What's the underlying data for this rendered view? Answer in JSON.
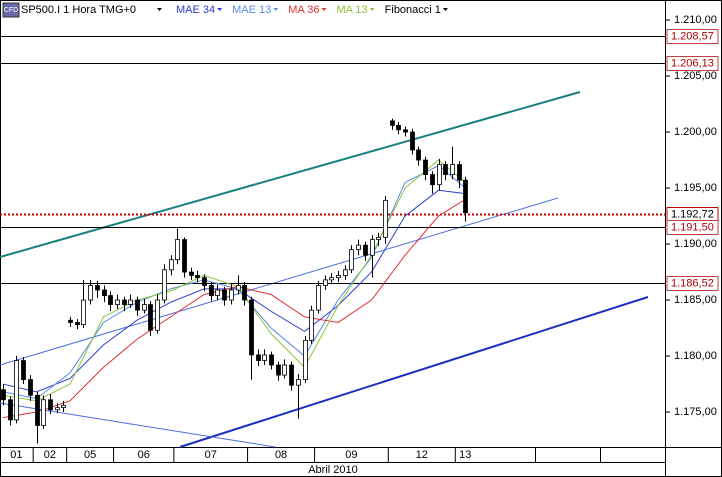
{
  "chart_data": {
    "type": "candlestick",
    "icon_label": "CFD",
    "title": "SP500.I 1 Hora TMG+0",
    "indicators": [
      "Fibonacci 1"
    ],
    "x_label": "Abril 2010",
    "ylim": [
      1.17188,
      1.21179
    ],
    "yticks": [
      {
        "value": 1.21,
        "label": "1.210,00"
      },
      {
        "value": 1.205,
        "label": "1.205,00"
      },
      {
        "value": 1.2,
        "label": "1.200,00"
      },
      {
        "value": 1.195,
        "label": "1.195,00"
      },
      {
        "value": 1.19,
        "label": "1.190,00"
      },
      {
        "value": 1.185,
        "label": "1.185,00"
      },
      {
        "value": 1.18,
        "label": "1.180,00"
      },
      {
        "value": 1.175,
        "label": "1.175,00"
      }
    ],
    "xlim": [
      -0.45,
      98.8
    ],
    "up_color": "#ffffff",
    "down_color": "#000000",
    "days": [
      {
        "label": "01",
        "start": 0
      },
      {
        "label": "02",
        "start": 5
      },
      {
        "label": "05",
        "start": 10
      },
      {
        "label": "06",
        "start": 17
      },
      {
        "label": "07",
        "start": 26
      },
      {
        "label": "08",
        "start": 37
      },
      {
        "label": "09",
        "start": 47
      },
      {
        "label": "12",
        "start": 58
      },
      {
        "label": "13",
        "start": 68
      }
    ],
    "levels": [
      {
        "value": 1.20857,
        "label": "1.208,57",
        "color": "#000000",
        "text_color": "#b00000",
        "style": "solid"
      },
      {
        "value": 1.20613,
        "label": "1.206,13",
        "color": "#000000",
        "text_color": "#b00000",
        "style": "solid"
      },
      {
        "value": 1.19272,
        "label": "1.192,72",
        "color": "#c00000",
        "text_color": "#000000",
        "style": "dotted"
      },
      {
        "value": 1.1915,
        "label": "1.191,50",
        "color": "#000000",
        "text_color": "#b00000",
        "style": "solid"
      },
      {
        "value": 1.18652,
        "label": "1.186,52",
        "color": "#000000",
        "text_color": "#b00000",
        "style": "solid"
      }
    ],
    "series": [
      {
        "name": "MAE 34",
        "color": "#2a3fd0",
        "x": [
          0,
          5,
          10,
          15,
          20,
          25,
          30,
          35,
          40,
          45,
          50,
          55,
          60,
          65,
          69
        ],
        "values": [
          1.1775,
          1.1768,
          1.178,
          1.181,
          1.1832,
          1.1848,
          1.186,
          1.186,
          1.184,
          1.1822,
          1.1845,
          1.1875,
          1.1925,
          1.1948,
          1.1945
        ]
      },
      {
        "name": "MAE 13",
        "color": "#5a8ae8",
        "x": [
          0,
          5,
          10,
          15,
          20,
          25,
          30,
          35,
          40,
          45,
          50,
          55,
          60,
          65,
          69
        ],
        "values": [
          1.1768,
          1.1762,
          1.1785,
          1.183,
          1.1848,
          1.186,
          1.1868,
          1.186,
          1.1825,
          1.18,
          1.185,
          1.1888,
          1.1955,
          1.197,
          1.195
        ]
      },
      {
        "name": "MA 36",
        "color": "#e03030",
        "x": [
          0,
          5,
          10,
          15,
          20,
          25,
          30,
          35,
          40,
          45,
          50,
          55,
          60,
          65,
          69
        ],
        "values": [
          1.1745,
          1.175,
          1.176,
          1.179,
          1.1815,
          1.1835,
          1.1855,
          1.1862,
          1.1855,
          1.1835,
          1.183,
          1.185,
          1.189,
          1.1925,
          1.194
        ]
      },
      {
        "name": "MA 13",
        "color": "#8cc43c",
        "x": [
          0,
          5,
          10,
          15,
          20,
          25,
          30,
          35,
          40,
          45,
          50,
          55,
          60,
          65,
          69
        ],
        "values": [
          1.1765,
          1.176,
          1.1775,
          1.1835,
          1.185,
          1.1858,
          1.1872,
          1.1862,
          1.182,
          1.179,
          1.1845,
          1.189,
          1.195,
          1.1975,
          1.1955
        ]
      }
    ],
    "ohlc": [
      [
        1.177,
        1.1775,
        1.1756,
        1.1761
      ],
      [
        1.1761,
        1.1764,
        1.1738,
        1.1743
      ],
      [
        1.1743,
        1.18,
        1.174,
        1.1796
      ],
      [
        1.1796,
        1.1799,
        1.1775,
        1.1779
      ],
      [
        1.1779,
        1.1783,
        1.176,
        1.1765
      ],
      [
        1.1765,
        1.1768,
        1.1722,
        1.1738
      ],
      [
        1.1738,
        1.1765,
        1.1735,
        1.1761
      ],
      [
        1.1761,
        1.1766,
        1.1748,
        1.1752
      ],
      [
        1.1752,
        1.1758,
        1.1749,
        1.1754
      ],
      [
        1.1754,
        1.176,
        1.175,
        1.1756
      ],
      [
        1.1832,
        1.1835,
        1.1826,
        1.183
      ],
      [
        1.183,
        1.1833,
        1.1824,
        1.1828
      ],
      [
        1.1828,
        1.1868,
        1.1825,
        1.185
      ],
      [
        1.185,
        1.1868,
        1.1846,
        1.1863
      ],
      [
        1.1863,
        1.1867,
        1.1852,
        1.1859
      ],
      [
        1.1859,
        1.1863,
        1.1848,
        1.1854
      ],
      [
        1.1854,
        1.1858,
        1.184,
        1.1846
      ],
      [
        1.1846,
        1.1855,
        1.1842,
        1.185
      ],
      [
        1.185,
        1.1853,
        1.184,
        1.1846
      ],
      [
        1.1846,
        1.1855,
        1.1843,
        1.185
      ],
      [
        1.185,
        1.1853,
        1.1836,
        1.1841
      ],
      [
        1.1841,
        1.1851,
        1.1838,
        1.1846
      ],
      [
        1.1846,
        1.1849,
        1.1818,
        1.1823
      ],
      [
        1.1823,
        1.1855,
        1.182,
        1.185
      ],
      [
        1.185,
        1.1882,
        1.1847,
        1.1877
      ],
      [
        1.1877,
        1.189,
        1.1872,
        1.1886
      ],
      [
        1.1886,
        1.1914,
        1.1882,
        1.1904
      ],
      [
        1.1904,
        1.1906,
        1.187,
        1.1875
      ],
      [
        1.1875,
        1.1879,
        1.1868,
        1.1872
      ],
      [
        1.1872,
        1.1876,
        1.1866,
        1.187
      ],
      [
        1.187,
        1.1873,
        1.1858,
        1.1863
      ],
      [
        1.1863,
        1.1866,
        1.1849,
        1.1854
      ],
      [
        1.1854,
        1.1864,
        1.185,
        1.1859
      ],
      [
        1.1859,
        1.1862,
        1.1845,
        1.185
      ],
      [
        1.185,
        1.1864,
        1.1846,
        1.1859
      ],
      [
        1.1859,
        1.1872,
        1.1855,
        1.1863
      ],
      [
        1.1863,
        1.1866,
        1.1845,
        1.185
      ],
      [
        1.185,
        1.1853,
        1.1779,
        1.1801
      ],
      [
        1.1801,
        1.1806,
        1.1791,
        1.1796
      ],
      [
        1.1796,
        1.1806,
        1.1792,
        1.1801
      ],
      [
        1.1801,
        1.1804,
        1.1788,
        1.1792
      ],
      [
        1.1792,
        1.1795,
        1.1778,
        1.1783
      ],
      [
        1.1783,
        1.1797,
        1.178,
        1.1792
      ],
      [
        1.1792,
        1.1795,
        1.1769,
        1.1774
      ],
      [
        1.1774,
        1.1784,
        1.1744,
        1.1779
      ],
      [
        1.1779,
        1.1818,
        1.1776,
        1.1814
      ],
      [
        1.1814,
        1.1845,
        1.1811,
        1.1841
      ],
      [
        1.1841,
        1.1867,
        1.1838,
        1.1863
      ],
      [
        1.1863,
        1.1872,
        1.1859,
        1.1868
      ],
      [
        1.1868,
        1.1874,
        1.1864,
        1.187
      ],
      [
        1.187,
        1.1876,
        1.1866,
        1.1872
      ],
      [
        1.1872,
        1.1881,
        1.1868,
        1.1877
      ],
      [
        1.1877,
        1.1899,
        1.1874,
        1.1895
      ],
      [
        1.1895,
        1.1904,
        1.189,
        1.1899
      ],
      [
        1.1899,
        1.1902,
        1.1885,
        1.189
      ],
      [
        1.189,
        1.1908,
        1.187,
        1.1904
      ],
      [
        1.1904,
        1.191,
        1.1898,
        1.1906
      ],
      [
        1.1906,
        1.1943,
        1.19,
        1.1939
      ],
      [
        1.201,
        1.2012,
        1.2002,
        1.2006
      ],
      [
        1.2006,
        1.2009,
        1.1998,
        1.2002
      ],
      [
        1.2002,
        1.2005,
        1.1996,
        1.2
      ],
      [
        1.2,
        1.2003,
        1.198,
        1.1984
      ],
      [
        1.1984,
        1.1987,
        1.197,
        1.1975
      ],
      [
        1.1975,
        1.1978,
        1.1957,
        1.1962
      ],
      [
        1.1962,
        1.1965,
        1.1945,
        1.1953
      ],
      [
        1.1953,
        1.1976,
        1.1948,
        1.1971
      ],
      [
        1.1971,
        1.1974,
        1.1957,
        1.1962
      ],
      [
        1.1962,
        1.1987,
        1.1958,
        1.1971
      ],
      [
        1.1971,
        1.1974,
        1.195,
        1.1957
      ],
      [
        1.1957,
        1.196,
        1.192,
        1.1928
      ]
    ]
  }
}
